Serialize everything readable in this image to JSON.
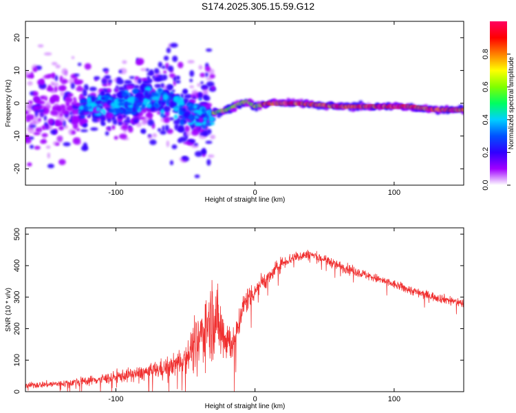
{
  "title": "S174.2025.305.15.59.G12",
  "colors": {
    "snr_line": "#f03030",
    "axis": "#000000",
    "colorbar_stops": [
      "#ffffff",
      "#a000ff",
      "#3000ff",
      "#0050ff",
      "#00d0ff",
      "#00ff60",
      "#80ff00",
      "#ffff00",
      "#ff8000",
      "#ff0000",
      "#ff0060"
    ]
  },
  "chart_data": [
    {
      "type": "heatmap",
      "name": "spectrogram",
      "xlabel": "Height of straight line (km)",
      "ylabel": "Frequency (Hz)",
      "xlim": [
        -165,
        150
      ],
      "ylim": [
        -25,
        25
      ],
      "xticks": [
        -100,
        0,
        100
      ],
      "yticks": [
        -20,
        -10,
        0,
        10,
        20
      ],
      "xtick_labels": [
        "-100",
        "0",
        "100"
      ],
      "ytick_labels": [
        "-20",
        "-10",
        "0",
        "10",
        "20"
      ],
      "description_series": [
        {
          "name": "peak_frequency",
          "x": [
            -120,
            -100,
            -80,
            -60,
            -50,
            -40,
            -30,
            -20,
            -10,
            -5,
            0,
            10,
            30,
            60,
            90,
            110,
            130,
            150
          ],
          "y": [
            -1,
            0,
            1,
            2,
            -3,
            -4,
            -3,
            -2,
            0,
            0.5,
            -1,
            0,
            0,
            -1,
            -1,
            -1,
            -2,
            -2
          ]
        }
      ],
      "colorbar": {
        "label": "Normalized spectral amplitude",
        "range": [
          0.0,
          1.0
        ],
        "ticks": [
          0.0,
          0.2,
          0.4,
          0.6,
          0.8
        ],
        "tick_labels": [
          "0.0",
          "0.2",
          "0.4",
          "0.6",
          "0.8"
        ]
      }
    },
    {
      "type": "line",
      "name": "snr",
      "xlabel": "Height of straight line (km)",
      "ylabel": "SNR (10 * v/v)",
      "xlim": [
        -165,
        150
      ],
      "ylim": [
        0,
        520
      ],
      "xticks": [
        -100,
        0,
        100
      ],
      "yticks": [
        0,
        100,
        200,
        300,
        400,
        500
      ],
      "xtick_labels": [
        "-100",
        "0",
        "100"
      ],
      "ytick_labels": [
        "0",
        "100",
        "200",
        "300",
        "400",
        "500"
      ],
      "series": [
        {
          "name": "SNR",
          "trend_x": [
            -165,
            -140,
            -110,
            -80,
            -60,
            -50,
            -45,
            -40,
            -35,
            -30,
            -25,
            -20,
            -15,
            -10,
            -5,
            0,
            5,
            10,
            15,
            20,
            30,
            40,
            50,
            60,
            80,
            100,
            120,
            140,
            150
          ],
          "trend_y": [
            20,
            25,
            40,
            60,
            80,
            110,
            140,
            170,
            210,
            240,
            200,
            170,
            150,
            250,
            300,
            320,
            350,
            360,
            390,
            410,
            430,
            435,
            420,
            400,
            370,
            340,
            310,
            290,
            280
          ],
          "noise_amplitude": [
            12,
            14,
            20,
            30,
            40,
            60,
            80,
            100,
            140,
            160,
            130,
            100,
            60,
            60,
            50,
            40,
            35,
            30,
            30,
            25,
            22,
            20,
            20,
            20,
            18,
            18,
            18,
            18,
            18
          ]
        }
      ]
    }
  ]
}
